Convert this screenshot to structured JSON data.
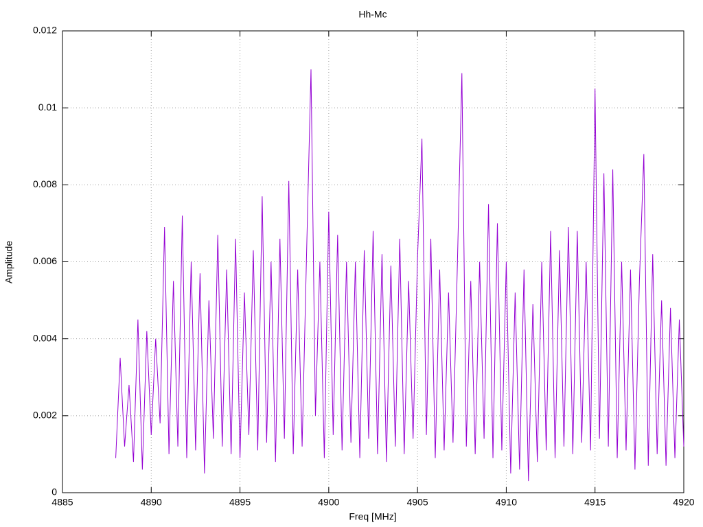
{
  "chart_data": {
    "type": "line",
    "title": "Hh-Mc",
    "x_label": "Freq [MHz]",
    "y_label": "Amplitude",
    "x": [
      4888,
      4888.25,
      4888.5,
      4888.75,
      4889,
      4889.25,
      4889.5,
      4889.75,
      4890,
      4890.25,
      4890.5,
      4890.75,
      4891,
      4891.25,
      4891.5,
      4891.75,
      4892,
      4892.25,
      4892.5,
      4892.75,
      4893,
      4893.25,
      4893.5,
      4893.75,
      4894,
      4894.25,
      4894.5,
      4894.75,
      4895,
      4895.25,
      4895.5,
      4895.75,
      4896,
      4896.25,
      4896.5,
      4896.75,
      4897,
      4897.25,
      4897.5,
      4897.75,
      4898,
      4898.25,
      4898.5,
      4898.75,
      4899,
      4899.25,
      4899.5,
      4899.75,
      4900,
      4900.25,
      4900.5,
      4900.75,
      4901,
      4901.25,
      4901.5,
      4901.75,
      4902,
      4902.25,
      4902.5,
      4902.75,
      4903,
      4903.25,
      4903.5,
      4903.75,
      4904,
      4904.25,
      4904.5,
      4904.75,
      4905,
      4905.25,
      4905.5,
      4905.75,
      4906,
      4906.25,
      4906.5,
      4906.75,
      4907,
      4907.25,
      4907.5,
      4907.75,
      4908,
      4908.25,
      4908.5,
      4908.75,
      4909,
      4909.25,
      4909.5,
      4909.75,
      4910,
      4910.25,
      4910.5,
      4910.75,
      4911,
      4911.25,
      4911.5,
      4911.75,
      4912,
      4912.25,
      4912.5,
      4912.75,
      4913,
      4913.25,
      4913.5,
      4913.75,
      4914,
      4914.25,
      4914.5,
      4914.75,
      4915,
      4915.25,
      4915.5,
      4915.75,
      4916,
      4916.25,
      4916.5,
      4916.75,
      4917,
      4917.25,
      4917.5,
      4917.75,
      4918,
      4918.25,
      4918.5,
      4918.75,
      4919,
      4919.25,
      4919.5,
      4919.75,
      4920
    ],
    "series": [
      {
        "name": "Hh-Mc",
        "color": "#9400d3",
        "values": [
          0.0009,
          0.0035,
          0.0012,
          0.0028,
          0.0008,
          0.0045,
          0.0006,
          0.0042,
          0.0015,
          0.004,
          0.0018,
          0.0069,
          0.001,
          0.0055,
          0.0012,
          0.0072,
          0.0009,
          0.006,
          0.0011,
          0.0057,
          0.0005,
          0.005,
          0.0014,
          0.0067,
          0.0012,
          0.0058,
          0.001,
          0.0066,
          0.0009,
          0.0052,
          0.0015,
          0.0063,
          0.0011,
          0.0077,
          0.0013,
          0.006,
          0.0008,
          0.0066,
          0.0014,
          0.0081,
          0.001,
          0.0058,
          0.0012,
          0.0062,
          0.011,
          0.002,
          0.006,
          0.0009,
          0.0073,
          0.0015,
          0.0067,
          0.0011,
          0.006,
          0.0013,
          0.006,
          0.0009,
          0.0063,
          0.0014,
          0.0068,
          0.001,
          0.0062,
          0.0008,
          0.0059,
          0.0012,
          0.0066,
          0.001,
          0.0055,
          0.0014,
          0.0061,
          0.0092,
          0.0015,
          0.0066,
          0.0009,
          0.0058,
          0.0011,
          0.0052,
          0.0013,
          0.006,
          0.0109,
          0.0012,
          0.0055,
          0.001,
          0.006,
          0.0014,
          0.0075,
          0.0009,
          0.007,
          0.0011,
          0.006,
          0.0005,
          0.0052,
          0.0006,
          0.0058,
          0.0003,
          0.0049,
          0.0008,
          0.006,
          0.0011,
          0.0068,
          0.0009,
          0.0063,
          0.0012,
          0.0069,
          0.001,
          0.0068,
          0.0013,
          0.006,
          0.0011,
          0.0105,
          0.0014,
          0.0083,
          0.0012,
          0.0084,
          0.0009,
          0.006,
          0.0011,
          0.0058,
          0.0006,
          0.0055,
          0.0088,
          0.0007,
          0.0062,
          0.001,
          0.005,
          0.0007,
          0.0048,
          0.0009,
          0.0045,
          0.0012
        ]
      }
    ],
    "xlim": [
      4885,
      4920
    ],
    "xticks": [
      4885,
      4890,
      4895,
      4900,
      4905,
      4910,
      4915,
      4920
    ],
    "ylim": [
      0,
      0.012
    ],
    "yticks": [
      0,
      0.002,
      0.004,
      0.006,
      0.008,
      0.01,
      0.012
    ],
    "grid": true
  }
}
